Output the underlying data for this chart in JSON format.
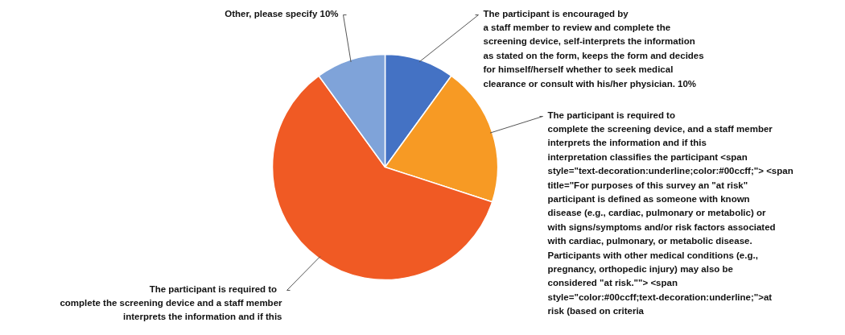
{
  "chart_data": {
    "type": "pie",
    "categories": [
      "The participant is  encouraged  by\na staff member to review and complete the\nscreening device, self-interprets the information\nas stated on the form, keeps the form and decides\nfor himself/herself whether to seek medical\nclearance or consult with his/her physician. 10%",
      "The participant is  required  to\ncomplete the screening device, and a staff member\ninterprets the information and if this\ninterpretation classifies the participant  <span\nstyle=\"text-decoration:underline;color:#00ccff;\"> <span\ntitle=\"For purposes of this survey an \"at risk\"\nparticipant is defined as someone with known\ndisease (e.g., cardiac, pulmonary or metabolic) or\nwith signs/symptoms and/or risk factors associated\nwith cardiac, pulmonary, or metabolic disease.\nParticipants with other medical conditions (e.g.,\npregnancy, orthopedic injury) may also be\nconsidered \"at risk.\"\"> <span\nstyle=\"color:#00ccff;text-decoration:underline;\">at\nrisk   (based on criteria",
      "The participant is  required  to\ncomplete the screening device and a staff member\ninterprets the information and if this",
      "Other, please specify 10%"
    ],
    "values": [
      10,
      20,
      60,
      10
    ],
    "colors": [
      "#4472c4",
      "#f79a24",
      "#f05a24",
      "#7fa3d9"
    ]
  }
}
